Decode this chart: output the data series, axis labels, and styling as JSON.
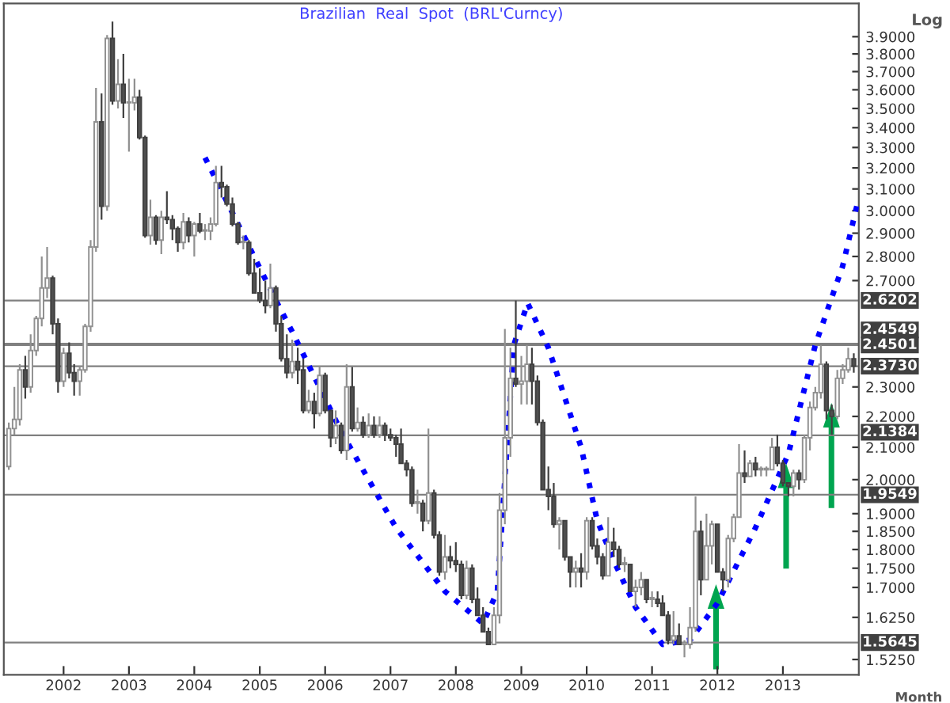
{
  "chart_data": {
    "type": "candlestick",
    "title": "Brazilian  Real  Spot  (BRL'Curncy)",
    "xlabel": "Month",
    "ylabel": "Log",
    "log": true,
    "x": [
      "2001-03",
      "2001-04",
      "2001-05",
      "2001-06",
      "2001-07",
      "2001-08",
      "2001-09",
      "2001-10",
      "2001-11",
      "2001-12",
      "2002-01",
      "2002-02",
      "2002-03",
      "2002-04",
      "2002-05",
      "2002-06",
      "2002-07",
      "2002-08",
      "2002-09",
      "2002-10",
      "2002-11",
      "2002-12",
      "2003-01",
      "2003-02",
      "2003-03",
      "2003-04",
      "2003-05",
      "2003-06",
      "2003-07",
      "2003-08",
      "2003-09",
      "2003-10",
      "2003-11",
      "2003-12",
      "2004-01",
      "2004-02",
      "2004-03",
      "2004-04",
      "2004-05",
      "2004-06",
      "2004-07",
      "2004-08",
      "2004-09",
      "2004-10",
      "2004-11",
      "2004-12",
      "2005-01",
      "2005-02",
      "2005-03",
      "2005-04",
      "2005-05",
      "2005-06",
      "2005-07",
      "2005-08",
      "2005-09",
      "2005-10",
      "2005-11",
      "2005-12",
      "2006-01",
      "2006-02",
      "2006-03",
      "2006-04",
      "2006-05",
      "2006-06",
      "2006-07",
      "2006-08",
      "2006-09",
      "2006-10",
      "2006-11",
      "2006-12",
      "2007-01",
      "2007-02",
      "2007-03",
      "2007-04",
      "2007-05",
      "2007-06",
      "2007-07",
      "2007-08",
      "2007-09",
      "2007-10",
      "2007-11",
      "2007-12",
      "2008-01",
      "2008-02",
      "2008-03",
      "2008-04",
      "2008-05",
      "2008-06",
      "2008-07",
      "2008-08",
      "2008-09",
      "2008-10",
      "2008-11",
      "2008-12",
      "2009-01",
      "2009-02",
      "2009-03",
      "2009-04",
      "2009-05",
      "2009-06",
      "2009-07",
      "2009-08",
      "2009-09",
      "2009-10",
      "2009-11",
      "2009-12",
      "2010-01",
      "2010-02",
      "2010-03",
      "2010-04",
      "2010-05",
      "2010-06",
      "2010-07",
      "2010-08",
      "2010-09",
      "2010-10",
      "2010-11",
      "2010-12",
      "2011-01",
      "2011-02",
      "2011-03",
      "2011-04",
      "2011-05",
      "2011-06",
      "2011-07",
      "2011-08",
      "2011-09",
      "2011-10",
      "2011-11",
      "2011-12",
      "2012-01",
      "2012-02",
      "2012-03",
      "2012-04",
      "2012-05",
      "2012-06",
      "2012-07",
      "2012-08",
      "2012-09",
      "2012-10",
      "2012-11",
      "2012-12",
      "2013-01",
      "2013-02",
      "2013-03",
      "2013-04",
      "2013-05",
      "2013-06",
      "2013-07",
      "2013-08",
      "2013-09",
      "2013-10",
      "2013-11",
      "2013-12",
      "2014-01",
      "2014-02"
    ],
    "ohlc": [
      [
        2.04,
        2.18,
        2.03,
        2.16
      ],
      [
        2.16,
        2.3,
        2.14,
        2.19
      ],
      [
        2.19,
        2.38,
        2.17,
        2.36
      ],
      [
        2.36,
        2.41,
        2.26,
        2.3
      ],
      [
        2.3,
        2.49,
        2.28,
        2.43
      ],
      [
        2.43,
        2.56,
        2.41,
        2.55
      ],
      [
        2.55,
        2.8,
        2.52,
        2.67
      ],
      [
        2.67,
        2.84,
        2.63,
        2.71
      ],
      [
        2.71,
        2.72,
        2.49,
        2.53
      ],
      [
        2.53,
        2.55,
        2.28,
        2.32
      ],
      [
        2.32,
        2.44,
        2.3,
        2.42
      ],
      [
        2.42,
        2.46,
        2.33,
        2.35
      ],
      [
        2.35,
        2.38,
        2.27,
        2.32
      ],
      [
        2.32,
        2.37,
        2.27,
        2.36
      ],
      [
        2.36,
        2.53,
        2.35,
        2.52
      ],
      [
        2.52,
        2.87,
        2.5,
        2.84
      ],
      [
        2.84,
        3.61,
        2.82,
        3.43
      ],
      [
        3.43,
        3.58,
        2.96,
        3.02
      ],
      [
        3.02,
        3.91,
        3.0,
        3.89
      ],
      [
        3.89,
        3.99,
        3.52,
        3.54
      ],
      [
        3.54,
        3.77,
        3.5,
        3.63
      ],
      [
        3.63,
        3.8,
        3.45,
        3.53
      ],
      [
        3.53,
        3.66,
        3.28,
        3.53
      ],
      [
        3.53,
        3.66,
        3.49,
        3.56
      ],
      [
        3.56,
        3.6,
        3.34,
        3.35
      ],
      [
        3.35,
        3.36,
        2.88,
        2.89
      ],
      [
        2.89,
        3.05,
        2.85,
        2.97
      ],
      [
        2.97,
        2.98,
        2.85,
        2.87
      ],
      [
        2.87,
        3.0,
        2.81,
        2.97
      ],
      [
        2.97,
        3.09,
        2.94,
        2.96
      ],
      [
        2.96,
        2.98,
        2.87,
        2.92
      ],
      [
        2.92,
        2.93,
        2.82,
        2.86
      ],
      [
        2.86,
        2.99,
        2.83,
        2.95
      ],
      [
        2.95,
        2.97,
        2.86,
        2.89
      ],
      [
        2.89,
        2.95,
        2.8,
        2.94
      ],
      [
        2.94,
        2.99,
        2.9,
        2.91
      ],
      [
        2.91,
        2.94,
        2.87,
        2.91
      ],
      [
        2.91,
        2.97,
        2.87,
        2.94
      ],
      [
        2.94,
        3.21,
        2.93,
        3.13
      ],
      [
        3.13,
        3.21,
        3.06,
        3.11
      ],
      [
        3.11,
        3.12,
        3.02,
        3.03
      ],
      [
        3.03,
        3.06,
        2.93,
        2.94
      ],
      [
        2.94,
        2.95,
        2.85,
        2.86
      ],
      [
        2.86,
        2.89,
        2.83,
        2.86
      ],
      [
        2.86,
        2.87,
        2.72,
        2.73
      ],
      [
        2.73,
        2.79,
        2.65,
        2.65
      ],
      [
        2.65,
        2.75,
        2.61,
        2.62
      ],
      [
        2.62,
        2.7,
        2.57,
        2.6
      ],
      [
        2.6,
        2.77,
        2.59,
        2.67
      ],
      [
        2.67,
        2.68,
        2.5,
        2.53
      ],
      [
        2.53,
        2.56,
        2.39,
        2.4
      ],
      [
        2.4,
        2.49,
        2.33,
        2.35
      ],
      [
        2.35,
        2.47,
        2.33,
        2.39
      ],
      [
        2.39,
        2.44,
        2.31,
        2.36
      ],
      [
        2.36,
        2.4,
        2.21,
        2.22
      ],
      [
        2.22,
        2.29,
        2.21,
        2.25
      ],
      [
        2.25,
        2.28,
        2.16,
        2.21
      ],
      [
        2.21,
        2.37,
        2.2,
        2.34
      ],
      [
        2.34,
        2.35,
        2.21,
        2.22
      ],
      [
        2.22,
        2.22,
        2.1,
        2.13
      ],
      [
        2.13,
        2.22,
        2.11,
        2.17
      ],
      [
        2.17,
        2.18,
        2.08,
        2.09
      ],
      [
        2.09,
        2.38,
        2.06,
        2.3
      ],
      [
        2.3,
        2.37,
        2.15,
        2.16
      ],
      [
        2.16,
        2.23,
        2.15,
        2.18
      ],
      [
        2.18,
        2.2,
        2.13,
        2.14
      ],
      [
        2.14,
        2.21,
        2.13,
        2.17
      ],
      [
        2.17,
        2.2,
        2.13,
        2.14
      ],
      [
        2.14,
        2.2,
        2.13,
        2.17
      ],
      [
        2.17,
        2.18,
        2.12,
        2.14
      ],
      [
        2.14,
        2.16,
        2.12,
        2.13
      ],
      [
        2.13,
        2.14,
        2.07,
        2.11
      ],
      [
        2.11,
        2.16,
        2.05,
        2.05
      ],
      [
        2.05,
        2.06,
        2.01,
        2.03
      ],
      [
        2.03,
        2.04,
        1.92,
        1.93
      ],
      [
        1.93,
        1.97,
        1.9,
        1.93
      ],
      [
        1.93,
        1.94,
        1.85,
        1.88
      ],
      [
        1.88,
        2.16,
        1.87,
        1.96
      ],
      [
        1.96,
        1.97,
        1.83,
        1.84
      ],
      [
        1.84,
        1.85,
        1.73,
        1.74
      ],
      [
        1.74,
        1.84,
        1.72,
        1.78
      ],
      [
        1.78,
        1.81,
        1.75,
        1.77
      ],
      [
        1.77,
        1.82,
        1.74,
        1.76
      ],
      [
        1.76,
        1.77,
        1.67,
        1.68
      ],
      [
        1.68,
        1.77,
        1.67,
        1.75
      ],
      [
        1.75,
        1.76,
        1.66,
        1.67
      ],
      [
        1.67,
        1.7,
        1.63,
        1.63
      ],
      [
        1.63,
        1.65,
        1.59,
        1.59
      ],
      [
        1.59,
        1.6,
        1.56,
        1.56
      ],
      [
        1.56,
        1.65,
        1.56,
        1.63
      ],
      [
        1.63,
        1.96,
        1.61,
        1.91
      ],
      [
        1.91,
        2.51,
        1.87,
        2.13
      ],
      [
        2.13,
        2.44,
        2.07,
        2.33
      ],
      [
        2.33,
        2.62,
        2.3,
        2.31
      ],
      [
        2.31,
        2.41,
        2.24,
        2.32
      ],
      [
        2.32,
        2.45,
        2.24,
        2.38
      ],
      [
        2.38,
        2.44,
        2.24,
        2.32
      ],
      [
        2.32,
        2.34,
        2.17,
        2.18
      ],
      [
        2.18,
        2.19,
        1.97,
        1.97
      ],
      [
        1.97,
        2.04,
        1.91,
        1.95
      ],
      [
        1.95,
        1.99,
        1.86,
        1.87
      ],
      [
        1.87,
        1.89,
        1.8,
        1.88
      ],
      [
        1.88,
        1.88,
        1.77,
        1.78
      ],
      [
        1.78,
        1.78,
        1.7,
        1.74
      ],
      [
        1.74,
        1.77,
        1.7,
        1.75
      ],
      [
        1.75,
        1.79,
        1.7,
        1.74
      ],
      [
        1.74,
        1.89,
        1.72,
        1.88
      ],
      [
        1.88,
        1.89,
        1.8,
        1.81
      ],
      [
        1.81,
        1.83,
        1.76,
        1.78
      ],
      [
        1.78,
        1.79,
        1.72,
        1.73
      ],
      [
        1.73,
        1.89,
        1.73,
        1.82
      ],
      [
        1.82,
        1.86,
        1.78,
        1.8
      ],
      [
        1.8,
        1.81,
        1.75,
        1.76
      ],
      [
        1.76,
        1.78,
        1.74,
        1.76
      ],
      [
        1.76,
        1.76,
        1.69,
        1.69
      ],
      [
        1.69,
        1.72,
        1.65,
        1.7
      ],
      [
        1.7,
        1.74,
        1.68,
        1.72
      ],
      [
        1.72,
        1.72,
        1.66,
        1.67
      ],
      [
        1.67,
        1.69,
        1.65,
        1.67
      ],
      [
        1.67,
        1.69,
        1.65,
        1.66
      ],
      [
        1.66,
        1.68,
        1.63,
        1.63
      ],
      [
        1.63,
        1.64,
        1.56,
        1.57
      ],
      [
        1.57,
        1.64,
        1.56,
        1.58
      ],
      [
        1.58,
        1.61,
        1.56,
        1.56
      ],
      [
        1.56,
        1.57,
        1.53,
        1.56
      ],
      [
        1.56,
        1.65,
        1.55,
        1.6
      ],
      [
        1.6,
        1.95,
        1.59,
        1.85
      ],
      [
        1.85,
        1.88,
        1.68,
        1.72
      ],
      [
        1.72,
        1.9,
        1.72,
        1.81
      ],
      [
        1.81,
        1.88,
        1.76,
        1.87
      ],
      [
        1.87,
        1.87,
        1.74,
        1.74
      ],
      [
        1.74,
        1.75,
        1.69,
        1.72
      ],
      [
        1.72,
        1.84,
        1.7,
        1.83
      ],
      [
        1.83,
        1.9,
        1.82,
        1.89
      ],
      [
        1.89,
        2.11,
        1.89,
        2.02
      ],
      [
        2.02,
        2.09,
        1.99,
        2.01
      ],
      [
        2.01,
        2.06,
        2.01,
        2.05
      ],
      [
        2.05,
        2.07,
        2.01,
        2.03
      ],
      [
        2.03,
        2.04,
        2.01,
        2.03
      ],
      [
        2.03,
        2.04,
        2.01,
        2.03
      ],
      [
        2.03,
        2.13,
        2.03,
        2.1
      ],
      [
        2.1,
        2.14,
        2.04,
        2.05
      ],
      [
        2.05,
        2.06,
        1.98,
        1.99
      ],
      [
        1.99,
        1.99,
        1.95,
        1.98
      ],
      [
        1.98,
        2.03,
        1.95,
        2.02
      ],
      [
        2.02,
        2.03,
        1.97,
        2.0
      ],
      [
        2.0,
        2.14,
        1.99,
        2.13
      ],
      [
        2.13,
        2.25,
        2.09,
        2.23
      ],
      [
        2.23,
        2.3,
        2.22,
        2.28
      ],
      [
        2.28,
        2.45,
        2.26,
        2.38
      ],
      [
        2.38,
        2.39,
        2.19,
        2.22
      ],
      [
        2.22,
        2.24,
        2.14,
        2.2
      ],
      [
        2.2,
        2.36,
        2.19,
        2.33
      ],
      [
        2.33,
        2.38,
        2.31,
        2.36
      ],
      [
        2.36,
        2.44,
        2.35,
        2.4
      ],
      [
        2.4,
        2.42,
        2.35,
        2.373
      ]
    ],
    "series": [
      {
        "type": "line",
        "color": "#0000ff",
        "line_style": "dotted",
        "x": [
          "2004-03",
          "2005-04",
          "2005-07",
          "2006-04",
          "2007-02",
          "2007-11",
          "2008-06",
          "2008-08-20",
          "2008-11-20",
          "2009-02-05",
          "2009-06",
          "2009-12",
          "2010-03",
          "2010-06",
          "2010-10",
          "2011-03",
          "2011-08",
          "2012-01",
          "2012-08",
          "2013-02",
          "2013-07",
          "2013-12",
          "2014-03"
        ],
        "values": [
          3.25,
          2.62,
          2.5,
          2.15,
          1.86,
          1.69,
          1.61,
          1.69,
          2.45,
          2.61,
          2.44,
          2.1,
          1.88,
          1.77,
          1.65,
          1.56,
          1.57,
          1.66,
          1.86,
          2.08,
          2.45,
          2.76,
          3.06
        ]
      }
    ],
    "ref_lines": [
      {
        "axis": "y",
        "value": 2.6202,
        "label": "2.6202",
        "color": "#808080"
      },
      {
        "axis": "y",
        "value": 2.4549,
        "label": "2.4549",
        "color": "#808080"
      },
      {
        "axis": "y",
        "value": 2.4501,
        "label": "2.4501",
        "color": "#808080"
      },
      {
        "axis": "y",
        "value": 2.373,
        "label": "2.3730",
        "color": "#808080"
      },
      {
        "axis": "y",
        "value": 2.1384,
        "label": "2.1384",
        "color": "#808080"
      },
      {
        "axis": "y",
        "value": 1.9549,
        "label": "1.9549",
        "color": "#808080"
      },
      {
        "axis": "y",
        "value": 1.5645,
        "label": "1.5645",
        "color": "#808080"
      }
    ],
    "xlim": [
      "2001-02",
      "2014-03"
    ],
    "xticks": [
      "2002",
      "2003",
      "2004",
      "2005",
      "2006",
      "2007",
      "2008",
      "2009",
      "2010",
      "2011",
      "2012",
      "2013"
    ],
    "ylim": [
      1.49,
      4.1
    ],
    "yticks": [
      {
        "value": 3.9,
        "label": "3.9000"
      },
      {
        "value": 3.8,
        "label": "3.8000"
      },
      {
        "value": 3.7,
        "label": "3.7000"
      },
      {
        "value": 3.6,
        "label": "3.6000"
      },
      {
        "value": 3.5,
        "label": "3.5000"
      },
      {
        "value": 3.4,
        "label": "3.4000"
      },
      {
        "value": 3.3,
        "label": "3.3000"
      },
      {
        "value": 3.2,
        "label": "3.2000"
      },
      {
        "value": 3.1,
        "label": "3.1000"
      },
      {
        "value": 3.0,
        "label": "3.0000"
      },
      {
        "value": 2.9,
        "label": "2.9000"
      },
      {
        "value": 2.8,
        "label": "2.8000"
      },
      {
        "value": 2.7,
        "label": "2.7000"
      },
      {
        "value": 2.3,
        "label": "2.3000"
      },
      {
        "value": 2.2,
        "label": "2.2000"
      },
      {
        "value": 2.1,
        "label": "2.1000"
      },
      {
        "value": 2.0,
        "label": "2.0000"
      },
      {
        "value": 1.9,
        "label": "1.9000"
      },
      {
        "value": 1.85,
        "label": "1.8500"
      },
      {
        "value": 1.8,
        "label": "1.8000"
      },
      {
        "value": 1.75,
        "label": "1.7500"
      },
      {
        "value": 1.7,
        "label": "1.7000"
      },
      {
        "value": 1.625,
        "label": "1.6250"
      },
      {
        "value": 1.525,
        "label": "1.5250"
      }
    ],
    "grid": false,
    "legend": false
  }
}
